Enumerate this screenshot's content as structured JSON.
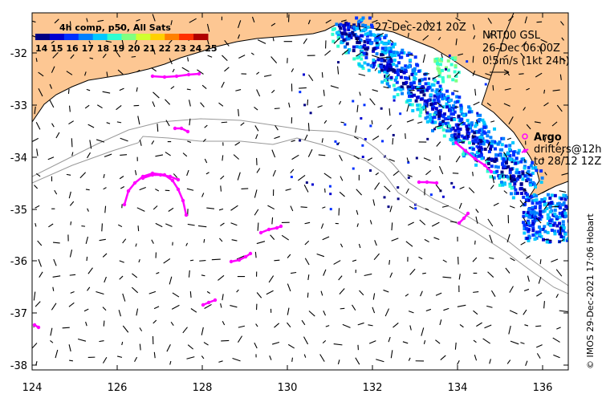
{
  "map": {
    "timestamp": "27-Dec-2021 20Z",
    "product": "NRT00 GSL",
    "current_time": "26-Dec 06:00Z",
    "velocity_scale": "0.5m/s (1kt 24h)",
    "credit": "© IMOS 29-Dec-2021 17:06 Hobart",
    "lon_range": [
      124,
      136.5
    ],
    "lat_range": [
      -38.1,
      -31.4
    ],
    "x_ticks": [
      "124",
      "126",
      "128",
      "130",
      "132",
      "134",
      "136"
    ],
    "y_ticks": [
      "-32",
      "-33",
      "-34",
      "-35",
      "-36",
      "-37",
      "-38"
    ],
    "colors": {
      "land": "#fdc793",
      "drifter": "#ff00ff",
      "contour": "#999999",
      "coast": "#000000"
    }
  },
  "colorbar": {
    "title": "4h comp, p50, All Sats",
    "labels": [
      "14",
      "15",
      "16",
      "17",
      "18",
      "19",
      "20",
      "21",
      "22",
      "23",
      "24",
      "25"
    ],
    "colors": [
      "#000083",
      "#0000d0",
      "#0030ff",
      "#0080ff",
      "#00c8ff",
      "#30ffd0",
      "#80ff80",
      "#d0ff30",
      "#ffd000",
      "#ff8000",
      "#ff3000",
      "#b00000"
    ]
  },
  "legend": {
    "symbol": "o",
    "title": "Argo",
    "line1": "drifters@12h",
    "line2": "to 28/12 12Z"
  }
}
